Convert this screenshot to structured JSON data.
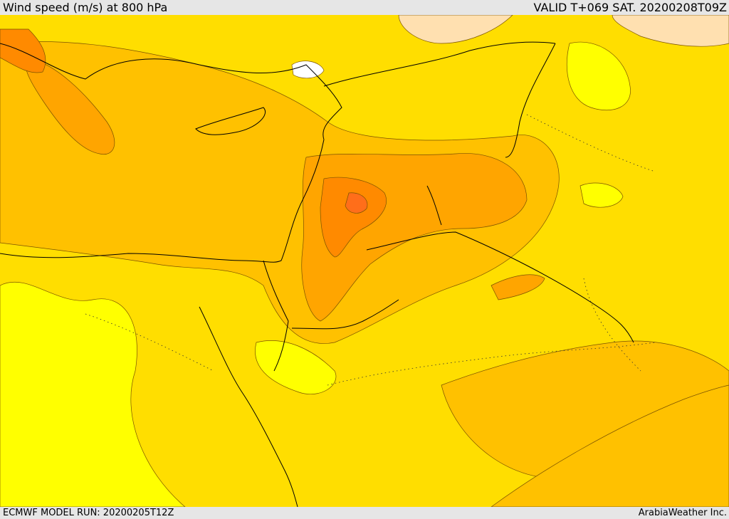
{
  "header": {
    "title": "Wind speed (m/s) at 800 hPa",
    "valid_time": "VALID T+069 SAT. 20200208T09Z"
  },
  "footer": {
    "model_run": "ECMWF MODEL RUN: 20200205T12Z",
    "credit": "ArabiaWeather Inc."
  },
  "colors": {
    "level_1": "#ffff00",
    "level_2": "#ffde00",
    "level_3": "#ffc100",
    "level_4": "#ffa500",
    "level_5": "#ff8a00",
    "level_6": "#ff6e1a",
    "calm": "#ffe0b0",
    "boundary": "#000000",
    "contour": "#7a5200"
  }
}
